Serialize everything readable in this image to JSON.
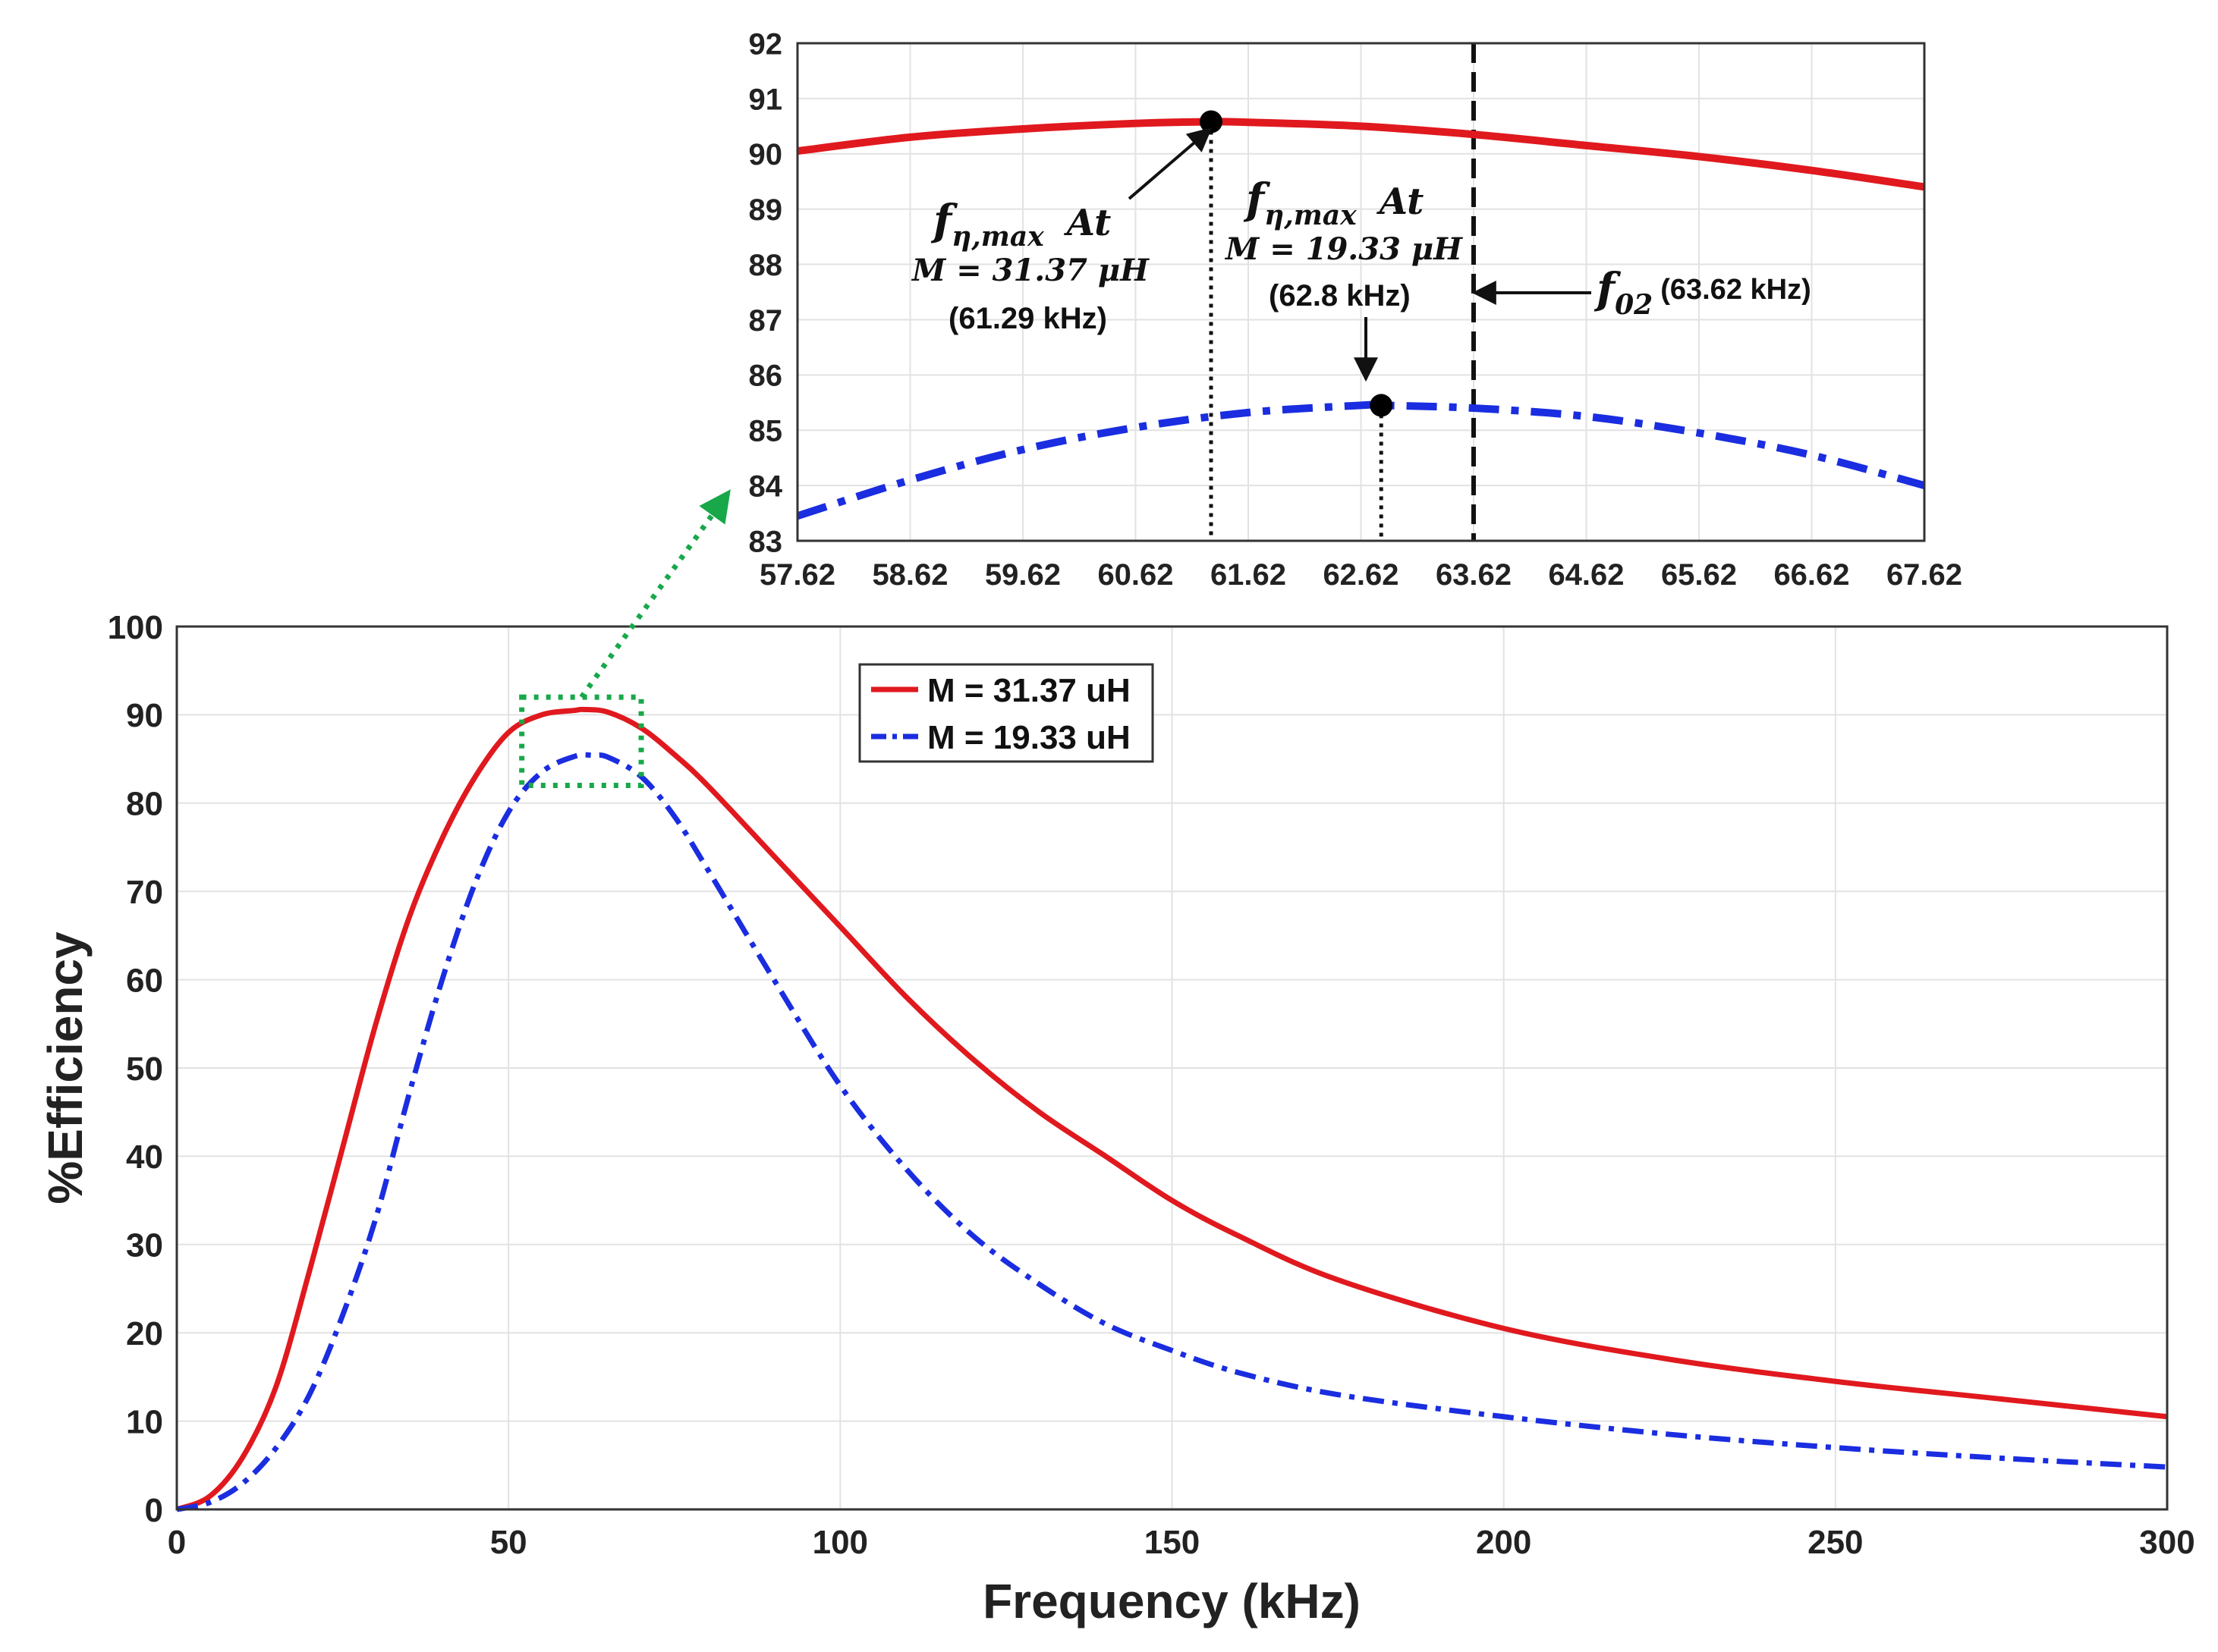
{
  "chart_data": [
    {
      "id": "main",
      "type": "line",
      "title": "",
      "xlabel": "Frequency (kHz)",
      "ylabel": "%Efficiency",
      "xlim": [
        0,
        300
      ],
      "ylim": [
        0,
        100
      ],
      "xticks": [
        0,
        50,
        100,
        150,
        200,
        250,
        300
      ],
      "xtick_labels": [
        "0",
        "50",
        "100",
        "150",
        "200",
        "250",
        "300"
      ],
      "yticks": [
        0,
        10,
        20,
        30,
        40,
        50,
        60,
        70,
        80,
        90,
        100
      ],
      "ytick_labels": [
        "0",
        "10",
        "20",
        "30",
        "40",
        "50",
        "60",
        "70",
        "80",
        "90",
        "100"
      ],
      "grid": true,
      "legend": "top-center",
      "series": [
        {
          "name": "M = 31.37 uH",
          "color": "#e0191e",
          "style": "solid",
          "x": [
            0,
            5,
            10,
            15,
            20,
            25,
            30,
            35,
            40,
            45,
            50,
            55,
            60,
            61.29,
            65,
            70,
            75,
            80,
            90,
            100,
            110,
            120,
            130,
            140,
            150,
            160,
            175,
            200,
            225,
            250,
            275,
            300
          ],
          "y": [
            0,
            1.5,
            6,
            14,
            27,
            41,
            55,
            67,
            76,
            83,
            88,
            90,
            90.5,
            90.6,
            90.3,
            88.5,
            85.5,
            82,
            74,
            66,
            58,
            51,
            45,
            40,
            35,
            31,
            26,
            20.5,
            17,
            14.5,
            12.5,
            10.5
          ]
        },
        {
          "name": "M = 19.33 uH",
          "color": "#1a2de0",
          "style": "dashdot",
          "x": [
            0,
            5,
            10,
            15,
            20,
            25,
            30,
            35,
            40,
            45,
            50,
            55,
            60,
            62.8,
            65,
            70,
            75,
            80,
            90,
            100,
            110,
            120,
            130,
            140,
            150,
            160,
            175,
            200,
            225,
            250,
            275,
            300
          ],
          "y": [
            0,
            0.8,
            3,
            7,
            13,
            22,
            33,
            47,
            60,
            71,
            79,
            83.5,
            85.3,
            85.4,
            85.2,
            83,
            78.5,
            72.5,
            60,
            48,
            38.5,
            31,
            25.5,
            21,
            18,
            15.5,
            13,
            10.5,
            8.5,
            7,
            5.8,
            4.8
          ]
        }
      ],
      "zoom_box": {
        "x": [
          52,
          70
        ],
        "y": [
          82,
          92
        ]
      }
    },
    {
      "id": "inset",
      "type": "line",
      "xlim": [
        57.62,
        67.62
      ],
      "ylim": [
        83,
        92
      ],
      "xticks": [
        57.62,
        58.62,
        59.62,
        60.62,
        61.62,
        62.62,
        63.62,
        64.62,
        65.62,
        66.62,
        67.62
      ],
      "xtick_labels": [
        "57.62",
        "58.62",
        "59.62",
        "60.62",
        "61.62",
        "62.62",
        "63.62",
        "64.62",
        "65.62",
        "66.62",
        "67.62"
      ],
      "yticks": [
        83,
        84,
        85,
        86,
        87,
        88,
        89,
        90,
        91,
        92
      ],
      "ytick_labels": [
        "83",
        "84",
        "85",
        "86",
        "87",
        "88",
        "89",
        "90",
        "91",
        "92"
      ],
      "grid": true,
      "series": [
        {
          "name": "M = 31.37 uH",
          "color": "#e0191e",
          "style": "solid",
          "x": [
            57.62,
            58.62,
            59.62,
            60.62,
            61.29,
            61.62,
            62.62,
            63.62,
            64.62,
            65.62,
            66.62,
            67.62
          ],
          "y": [
            90.05,
            90.3,
            90.45,
            90.55,
            90.58,
            90.57,
            90.5,
            90.35,
            90.15,
            89.95,
            89.7,
            89.4
          ]
        },
        {
          "name": "M = 19.33 uH",
          "color": "#1a2de0",
          "style": "dashdot",
          "x": [
            57.62,
            58.62,
            59.62,
            60.62,
            61.62,
            62.62,
            62.8,
            63.62,
            64.62,
            65.62,
            66.62,
            67.62
          ],
          "y": [
            83.45,
            84.1,
            84.65,
            85.05,
            85.32,
            85.45,
            85.45,
            85.4,
            85.25,
            84.95,
            84.55,
            84.0
          ]
        }
      ],
      "vlines": [
        {
          "x": 61.29,
          "style": "dotted",
          "y_to": 90.58
        },
        {
          "x": 62.8,
          "style": "dotted",
          "y_to": 85.45
        },
        {
          "x": 63.62,
          "style": "dashed",
          "y_to": 92
        }
      ],
      "markers": [
        {
          "x": 61.29,
          "y": 90.58
        },
        {
          "x": 62.8,
          "y": 85.45
        }
      ]
    }
  ],
  "annotations": {
    "peak1": {
      "f": "f",
      "sub": "η,max",
      "at": "At",
      "mutual": "M = 31.37 μH",
      "freq": "(61.29 kHz)"
    },
    "peak2": {
      "f": "f",
      "sub": "η,max",
      "at": "At",
      "mutual": "M = 19.33 μH",
      "freq": "(62.8 kHz)"
    },
    "resonance": {
      "f": "f",
      "sub": "02",
      "freq": "(63.62 kHz)"
    }
  },
  "colors": {
    "red": "#e0191e",
    "blue": "#1a2de0",
    "zoom_box": "#18a84a",
    "grid": "#e2e2e2"
  }
}
